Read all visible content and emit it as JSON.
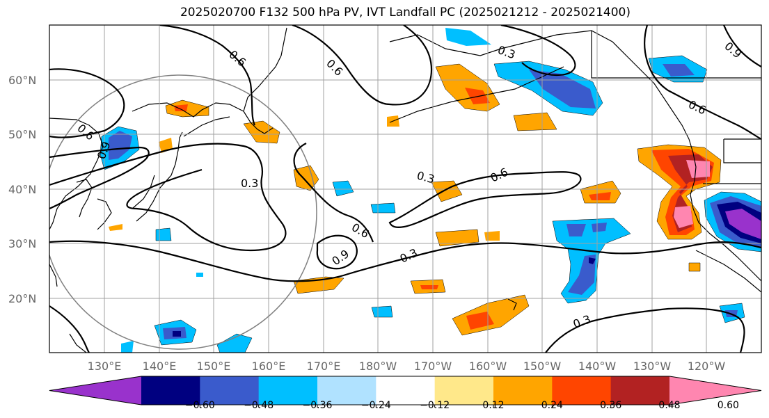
{
  "title": "2025020700 F132 500 hPa PV, IVT Landfall PC (2025021212 - 2025021400)",
  "map": {
    "lat_labels": [
      "60°N",
      "50°N",
      "40°N",
      "30°N",
      "20°N"
    ],
    "lon_labels": [
      "130°E",
      "140°E",
      "150°E",
      "160°E",
      "170°E",
      "180°W",
      "170°W",
      "160°W",
      "150°W",
      "140°W",
      "130°W",
      "120°W"
    ],
    "pv_contour_labels": [
      "0.6",
      "0.6",
      "0.3",
      "0.6",
      "0.6",
      "0.9",
      "0.3",
      "0.3",
      "0.6",
      "0.6",
      "0.9",
      "0.3",
      "0.3",
      "0.9"
    ]
  },
  "colorbar": {
    "ticks": [
      "−0.60",
      "−0.48",
      "−0.36",
      "−0.24",
      "−0.12",
      "0.12",
      "0.24",
      "0.36",
      "0.48",
      "0.60"
    ],
    "colors": [
      "#9932cc",
      "#000080",
      "#3a5bcc",
      "#00bfff",
      "#b0e2ff",
      "#ffffff",
      "#ffe88a",
      "#ffa500",
      "#ff4500",
      "#b22222",
      "#ff86b0"
    ]
  }
}
